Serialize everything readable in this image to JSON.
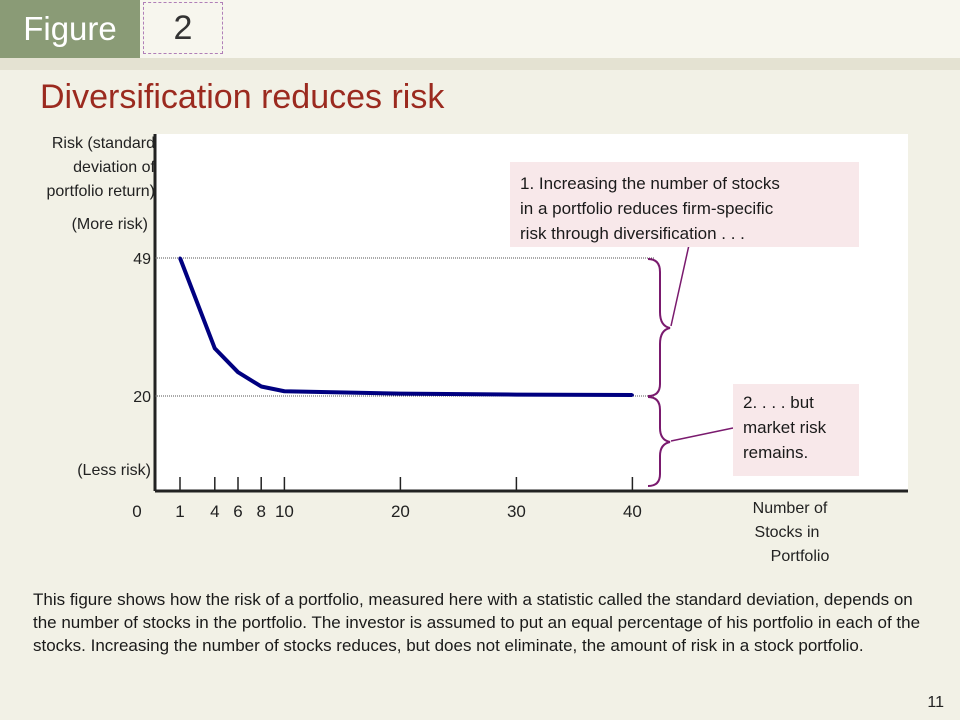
{
  "header": {
    "figure_label": "Figure",
    "figure_number": "2",
    "title": "Diversification reduces risk"
  },
  "colors": {
    "curve": "#000080",
    "bracket": "#7a1a6e",
    "callout_bg": "#f8e8ea",
    "axis": "#222222",
    "title": "#9b2a1f"
  },
  "chart_data": {
    "type": "line",
    "x": [
      1,
      4,
      6,
      8,
      10,
      20,
      30,
      40
    ],
    "series": [
      {
        "values": [
          49,
          30,
          25,
          22,
          21,
          20.5,
          20.3,
          20.2
        ]
      }
    ],
    "x_ticks": [
      1,
      4,
      6,
      8,
      10,
      20,
      30,
      40
    ],
    "y_ticks": [
      20,
      49
    ],
    "xlim": [
      0,
      40
    ],
    "ylim": [
      0,
      49
    ],
    "y_origin_label": "0",
    "ylabel_lines": [
      "Risk (standard",
      "deviation of",
      "portfolio return)"
    ],
    "y_top_note": "(More risk)",
    "y_bottom_note": "(Less risk)",
    "xlabel_lines": [
      "Number of",
      "Stocks in",
      "Portfolio"
    ],
    "reference_lines": [
      49,
      20
    ],
    "grid": false,
    "annotations": [
      {
        "lines": [
          "1. Increasing the number of stocks",
          "in a portfolio reduces firm-specific",
          "risk through diversification . . ."
        ]
      },
      {
        "lines": [
          "2. . . . but",
          "market risk",
          "remains."
        ]
      }
    ]
  },
  "caption": "This figure shows how the risk of a portfolio, measured here with a statistic called the standard deviation, depends on the number of stocks in the portfolio. The investor is assumed to put an equal percentage of his portfolio in each of the stocks. Increasing the number of stocks reduces, but does not eliminate, the amount of risk in a stock portfolio.",
  "page_number": "11"
}
